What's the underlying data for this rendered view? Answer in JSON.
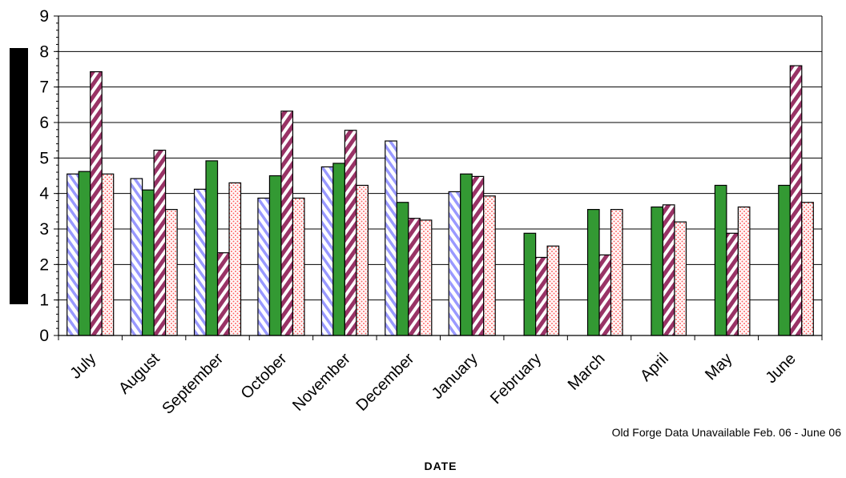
{
  "chart_data": {
    "type": "bar",
    "categories": [
      "July",
      "August",
      "September",
      "October",
      "November",
      "December",
      "January",
      "February",
      "March",
      "April",
      "May",
      "June"
    ],
    "series": [
      {
        "pattern": "blue-diagonal",
        "color": "#9999ff",
        "values": [
          4.55,
          4.42,
          4.12,
          3.87,
          4.75,
          5.48,
          4.05,
          null,
          null,
          null,
          null,
          null
        ]
      },
      {
        "pattern": "solid-green",
        "color": "#339933",
        "values": [
          4.62,
          4.1,
          4.92,
          4.5,
          4.85,
          3.75,
          4.55,
          2.88,
          3.55,
          3.62,
          4.23,
          4.23
        ]
      },
      {
        "pattern": "maroon-diagonal",
        "color": "#993366",
        "values": [
          7.43,
          5.22,
          2.33,
          6.32,
          5.78,
          3.3,
          4.48,
          2.2,
          2.27,
          3.68,
          2.88,
          7.6
        ]
      },
      {
        "pattern": "pink-dots",
        "color": "#ff9999",
        "values": [
          4.55,
          3.55,
          4.3,
          3.87,
          4.23,
          3.25,
          3.93,
          2.52,
          3.55,
          3.2,
          3.62,
          3.75
        ]
      }
    ],
    "title": "",
    "xlabel": "DATE",
    "ylabel": "",
    "ylim": [
      0,
      9
    ],
    "yticks": [
      0,
      1,
      2,
      3,
      4,
      5,
      6,
      7,
      8,
      9
    ],
    "grid": "horizontal",
    "annotation": "Old Forge Data Unavailable Feb. 06 - June 06"
  }
}
